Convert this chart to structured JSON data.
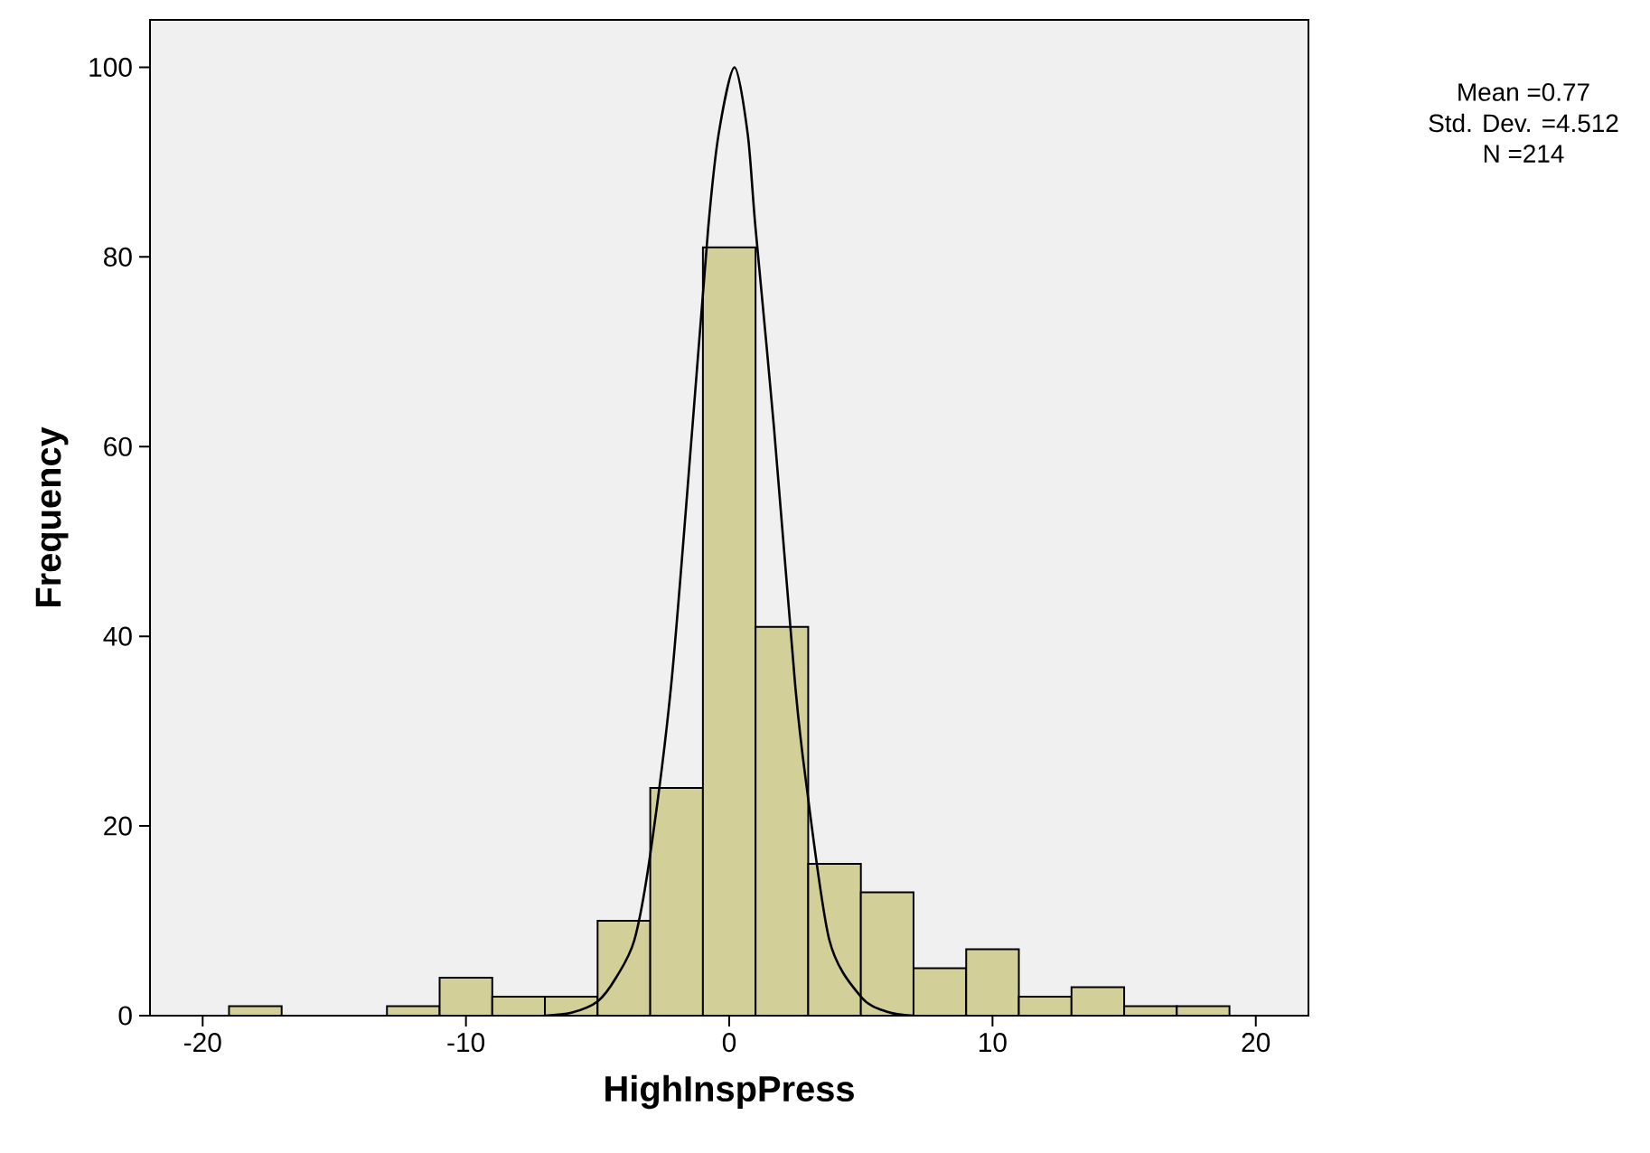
{
  "chart_data": {
    "type": "histogram",
    "xlabel": "HighInspPress",
    "ylabel": "Frequency",
    "annotations": [
      "Mean =0.77",
      "Std. Dev. =4.512",
      "N =214"
    ],
    "xlim": [
      -22,
      22
    ],
    "ylim": [
      0,
      105
    ],
    "xticks": [
      -20,
      -10,
      0,
      10,
      20
    ],
    "yticks": [
      0,
      20,
      40,
      60,
      80,
      100
    ],
    "series": [
      {
        "color": "#d3cf98",
        "bins": [
          -19,
          -17,
          -15,
          -13,
          -11,
          -9,
          -7,
          -5,
          -3,
          -1,
          1,
          3,
          5,
          7,
          9,
          11,
          13,
          15,
          17,
          19
        ],
        "values": [
          1,
          0,
          0,
          1,
          4,
          2,
          2,
          10,
          24,
          81,
          41,
          16,
          13,
          5,
          7,
          2,
          3,
          1,
          1
        ]
      },
      {
        "type": "line",
        "color": "#000000",
        "x": [
          -7,
          -6,
          -5,
          -4.3,
          -3.6,
          -3,
          -2.2,
          -1.4,
          -0.8,
          -0.4,
          0.2,
          0.7,
          1,
          1.7,
          2.5,
          2.9,
          3.8,
          5,
          6,
          7
        ],
        "values": [
          0,
          0.3,
          1.5,
          4,
          8,
          17,
          35,
          62,
          83,
          93,
          100,
          93,
          83,
          62,
          35,
          25,
          8,
          2,
          0.4,
          0
        ]
      }
    ]
  }
}
